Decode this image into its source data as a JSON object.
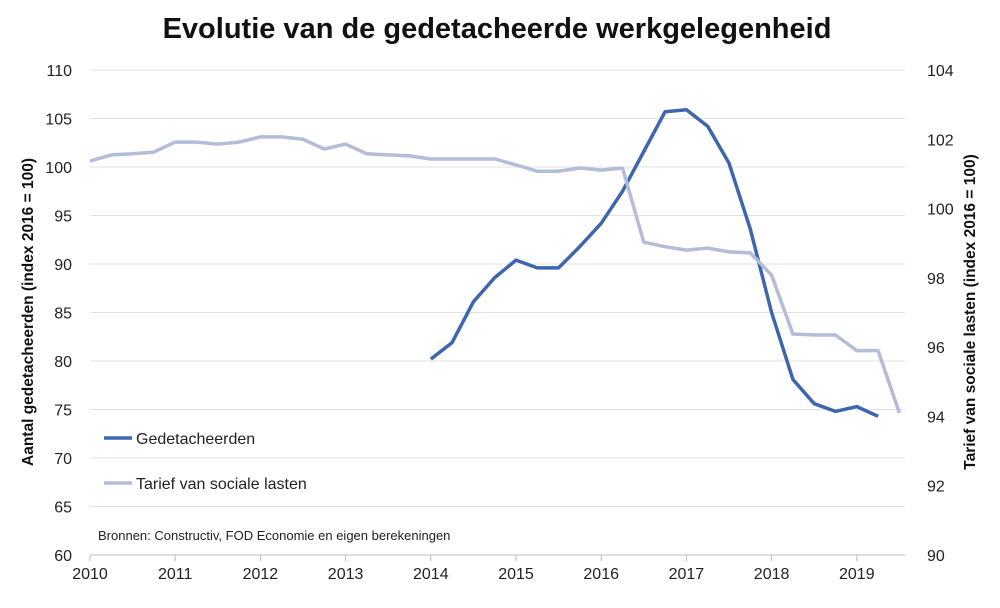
{
  "chart_data": {
    "type": "line",
    "title": "Evolutie van de gedetacheerde werkgelegenheid",
    "xlabel": "",
    "ylabel": "Aantal gedetacheerden (index 2016 = 100)",
    "y2label": "Tarief van sociale lasten (index 2016 = 100)",
    "xlim": [
      2010,
      2019.5
    ],
    "ylim": [
      60,
      110
    ],
    "y2lim": [
      90,
      104
    ],
    "x_ticks": [
      "2010",
      "2011",
      "2012",
      "2013",
      "2014",
      "2015",
      "2016",
      "2017",
      "2018",
      "2019"
    ],
    "y_ticks": [
      "60",
      "65",
      "70",
      "75",
      "80",
      "85",
      "90",
      "95",
      "100",
      "105",
      "110"
    ],
    "y2_ticks": [
      "90",
      "92",
      "94",
      "96",
      "98",
      "100",
      "102",
      "104"
    ],
    "grid": true,
    "legend_position": "bottom-left",
    "note": "Bronnen: Constructiv, FOD Economie en eigen berekeningen",
    "series": [
      {
        "name": "Gedetacheerden",
        "axis": "left",
        "color": "#3f65ad",
        "x_start": 2014.0,
        "x_step": 0.25,
        "values": [
          80.2,
          81.9,
          86.1,
          88.6,
          90.4,
          89.6,
          89.6,
          91.8,
          94.2,
          97.5,
          101.6,
          105.7,
          105.9,
          104.2,
          100.4,
          93.6,
          85.0,
          78.1,
          75.6,
          74.8,
          75.3,
          74.3
        ]
      },
      {
        "name": "Tarief van sociale lasten",
        "axis": "right",
        "color": "#b4bcd9",
        "x_start": 2010.0,
        "x_step": 0.25,
        "values": [
          101.37,
          101.55,
          101.58,
          101.63,
          101.92,
          101.92,
          101.86,
          101.92,
          102.07,
          102.07,
          102.0,
          101.72,
          101.86,
          101.58,
          101.55,
          101.52,
          101.43,
          101.43,
          101.43,
          101.43,
          101.26,
          101.08,
          101.08,
          101.17,
          101.11,
          101.17,
          99.03,
          98.9,
          98.8,
          98.86,
          98.75,
          98.72,
          98.08,
          96.38,
          96.35,
          96.35,
          95.9,
          95.9,
          94.1
        ]
      }
    ]
  }
}
